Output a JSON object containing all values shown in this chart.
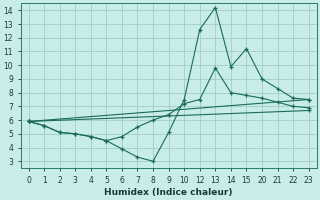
{
  "bg_color": "#c8ece8",
  "grid_color": "#a0ccc8",
  "line_color": "#1a6b5a",
  "xlabel": "Humidex (Indice chaleur)",
  "xlim": [
    -0.5,
    18.5
  ],
  "ylim": [
    2.5,
    14.5
  ],
  "yticks_labels": [
    "3",
    "4",
    "5",
    "6",
    "7",
    "8",
    "9",
    "10",
    "11",
    "12",
    "13",
    "14"
  ],
  "yticks_pos": [
    3,
    4,
    5,
    6,
    7,
    8,
    9,
    10,
    11,
    12,
    13,
    14
  ],
  "xticks_labels": [
    "0",
    "1",
    "2",
    "3",
    "4",
    "5",
    "6",
    "7",
    "8",
    "9",
    "10",
    "12",
    "13",
    "14",
    "15",
    "20",
    "21",
    "22",
    "23"
  ],
  "xticks_pos": [
    0,
    1,
    2,
    3,
    4,
    5,
    6,
    7,
    8,
    9,
    10,
    11,
    12,
    13,
    14,
    15,
    16,
    17,
    18
  ],
  "series": [
    {
      "x": [
        0,
        1,
        2,
        3,
        4,
        5,
        6,
        7,
        8,
        9,
        10,
        11,
        12,
        13,
        14,
        15,
        16,
        17,
        18
      ],
      "y": [
        5.9,
        5.6,
        5.1,
        5.0,
        4.8,
        4.5,
        3.9,
        3.3,
        3.0,
        5.1,
        7.5,
        12.6,
        14.2,
        9.9,
        11.2,
        9.0,
        8.3,
        7.6,
        7.5
      ]
    },
    {
      "x": [
        0,
        1,
        2,
        3,
        4,
        5,
        6,
        7,
        8,
        9,
        10,
        11,
        12,
        13,
        14,
        15,
        16,
        17,
        18
      ],
      "y": [
        5.9,
        5.6,
        5.1,
        5.0,
        4.8,
        4.5,
        4.8,
        5.5,
        6.0,
        6.4,
        7.2,
        7.5,
        9.8,
        8.0,
        7.8,
        7.6,
        7.3,
        7.0,
        6.9
      ]
    },
    {
      "x": [
        0,
        18
      ],
      "y": [
        5.9,
        7.5
      ]
    },
    {
      "x": [
        0,
        18
      ],
      "y": [
        5.9,
        6.7
      ]
    }
  ]
}
